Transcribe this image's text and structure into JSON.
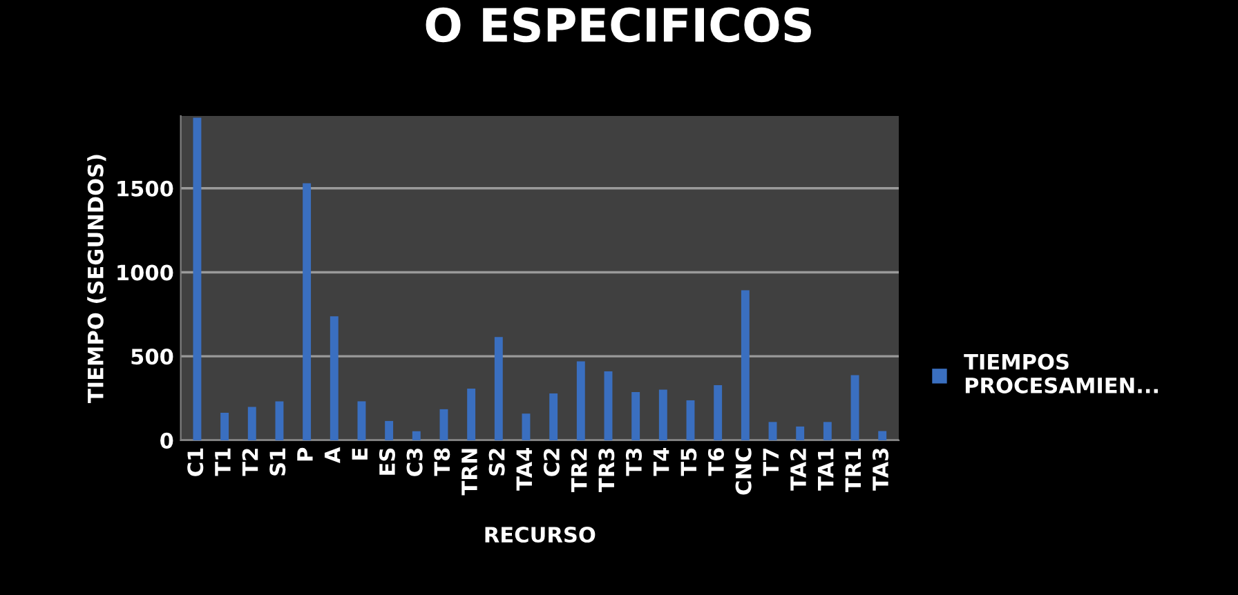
{
  "chart_data": {
    "type": "bar",
    "title": "O ESPECIFICOS",
    "xlabel": "RECURSO",
    "ylabel": "TIEMPO (SEGUNDOS)",
    "categories": [
      "C1",
      "T1",
      "T2",
      "S1",
      "P",
      "A",
      "E",
      "ES",
      "C3",
      "T8",
      "TRN",
      "S2",
      "TA4",
      "C2",
      "TR2",
      "TR3",
      "T3",
      "T4",
      "T5",
      "T6",
      "CNC",
      "T7",
      "TA2",
      "TA1",
      "TR1",
      "TA3"
    ],
    "series": [
      {
        "name": "TIEMPOS PROCESAMIEN...",
        "color": "#3a6fc0",
        "values": [
          1920,
          164,
          199,
          232,
          1530,
          738,
          232,
          115,
          54,
          185,
          308,
          615,
          159,
          279,
          470,
          410,
          287,
          301,
          238,
          328,
          893,
          109,
          82,
          109,
          388,
          55
        ]
      }
    ],
    "ylim": [
      0,
      1930
    ],
    "yticks": [
      0,
      500,
      1000,
      1500
    ],
    "grid": "y",
    "legend": "right"
  }
}
